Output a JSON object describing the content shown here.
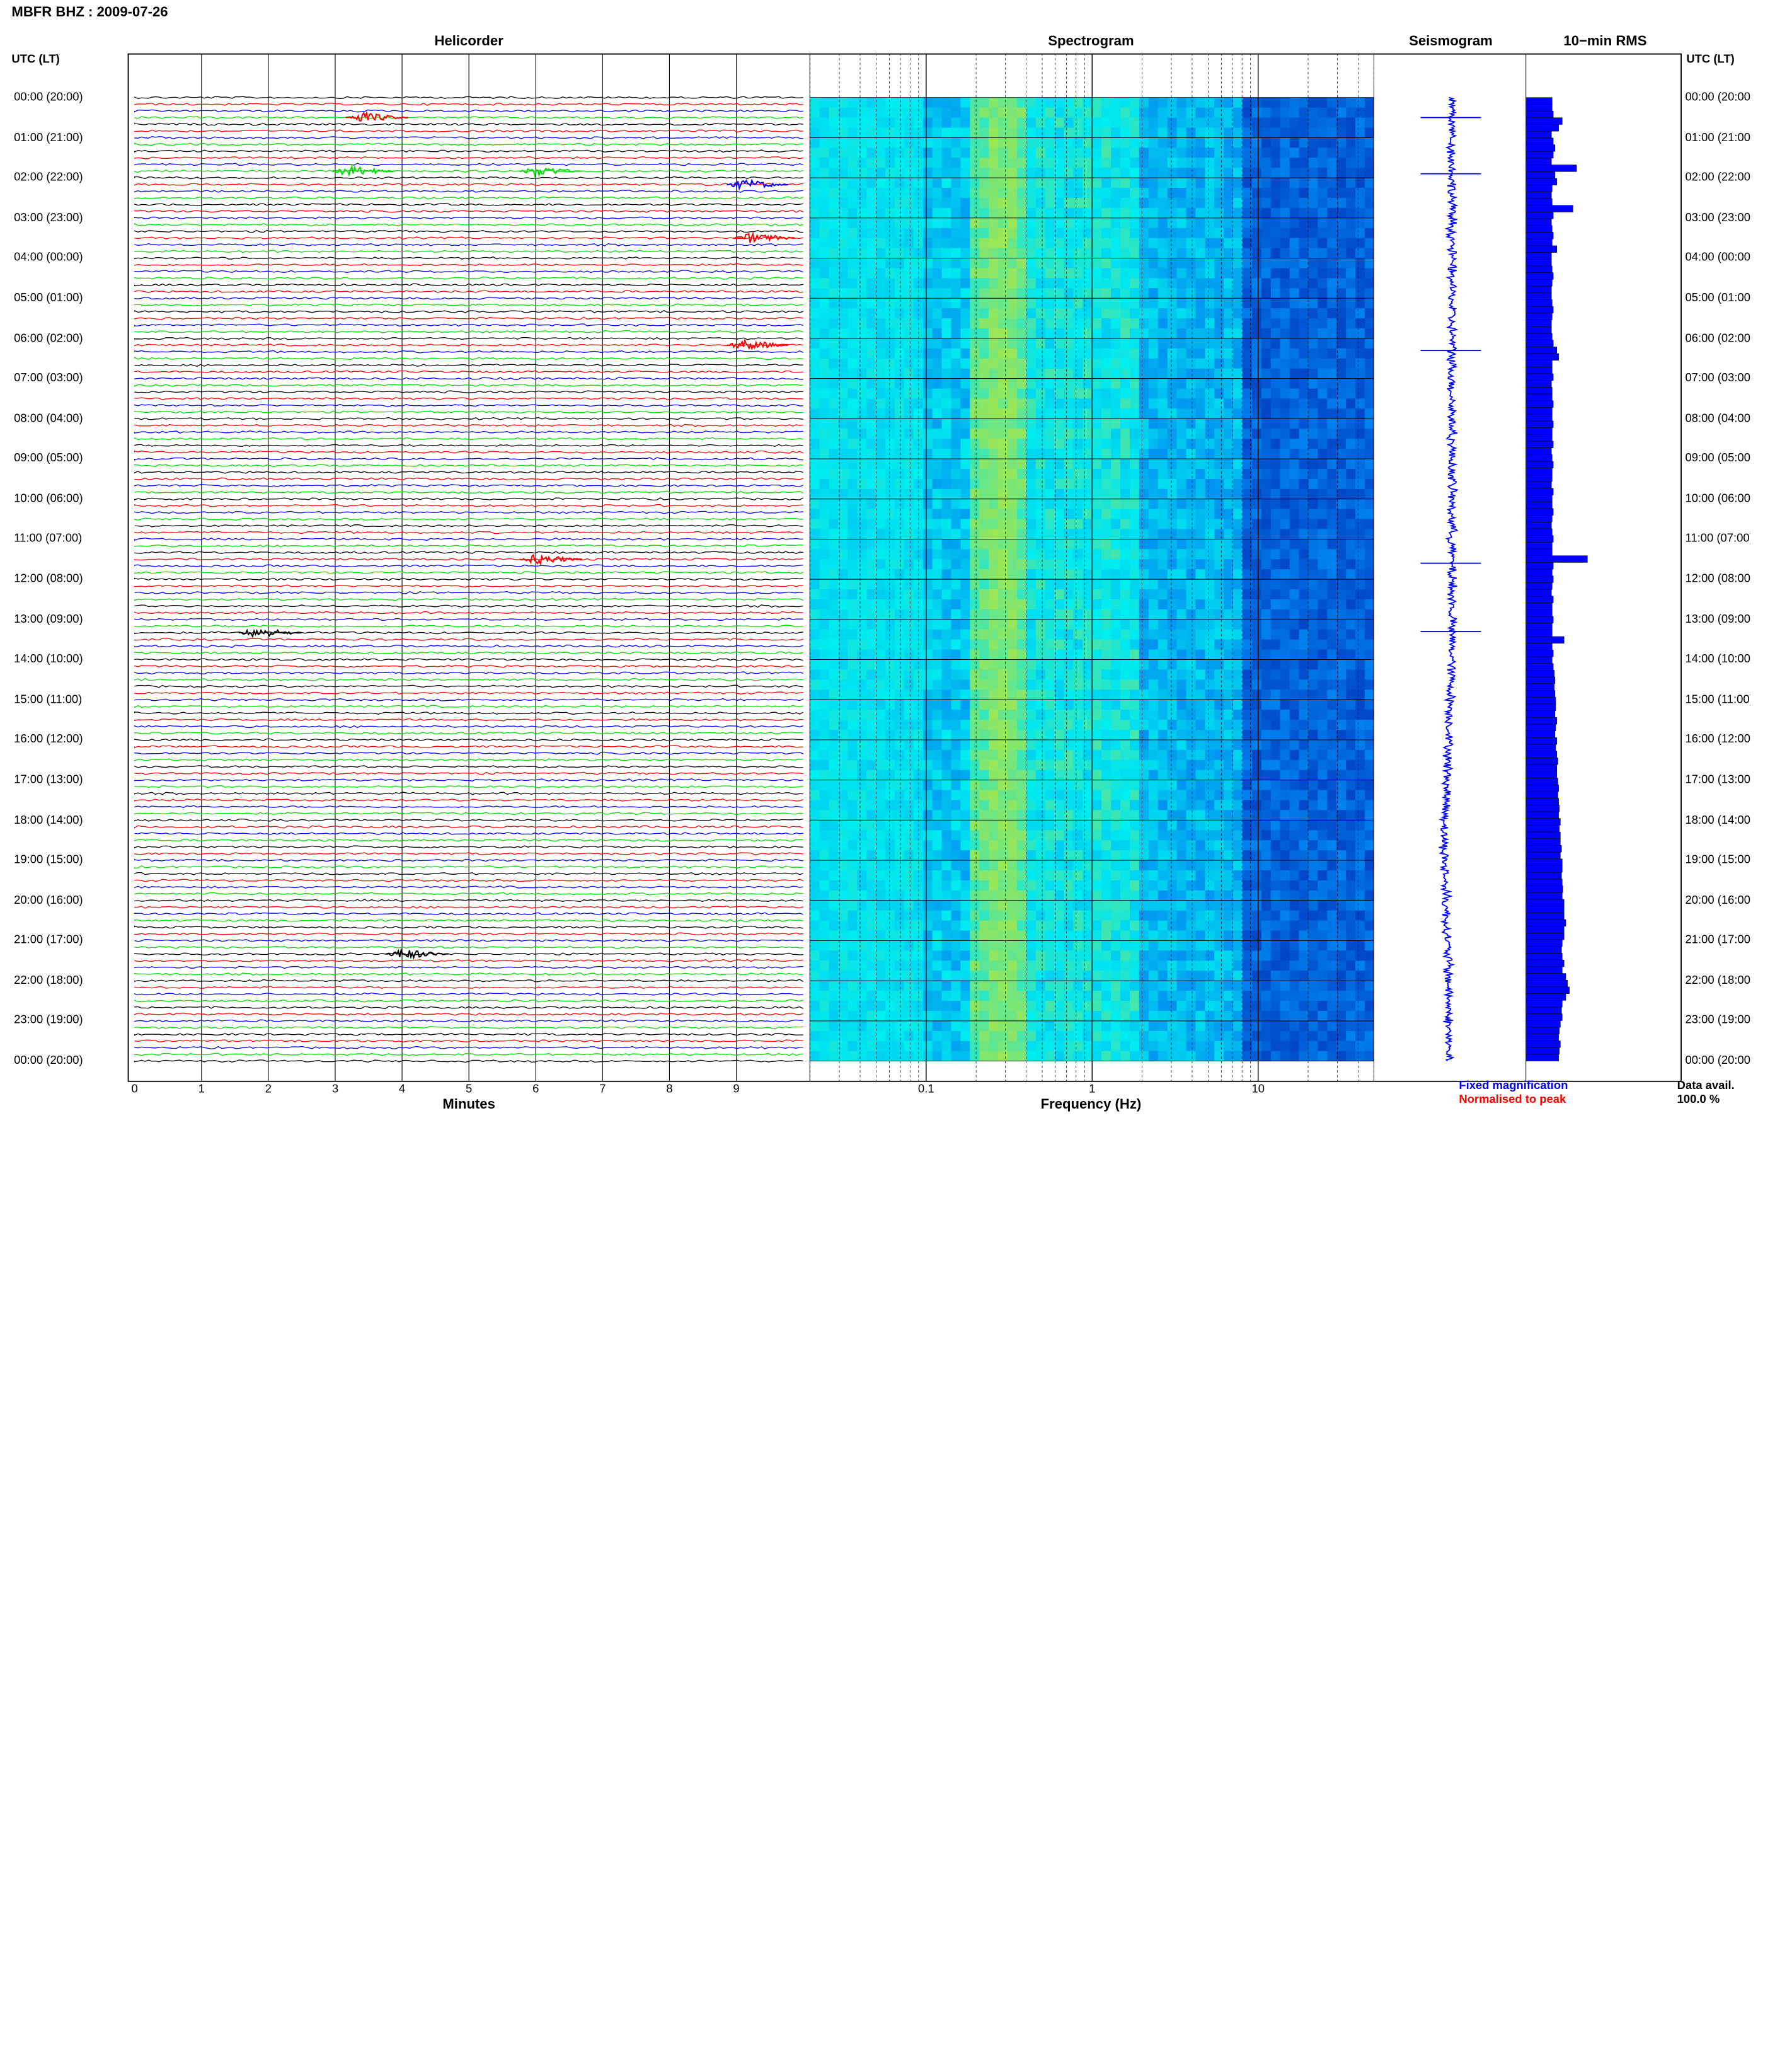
{
  "header": {
    "title": "MBFR BHZ : 2009-07-26"
  },
  "panels": {
    "helicorder": "Helicorder",
    "spectrogram": "Spectrogram",
    "seismogram": "Seismogram",
    "rms": "10−min RMS"
  },
  "axis": {
    "utc_label_left": "UTC (LT)",
    "utc_label_right": "UTC (LT)",
    "minutes_label": "Minutes",
    "frequency_label": "Frequency (Hz)"
  },
  "legend": {
    "fixed": "Fixed magnification",
    "normalised": "Normalised to peak"
  },
  "availability": {
    "label": "Data avail.",
    "value": "100.0 %"
  },
  "colors": {
    "trace_cycle": [
      "#000000",
      "#ff0000",
      "#0000ff",
      "#00dd00"
    ],
    "seismogram": "#0000ff",
    "rms": "#0000ff"
  },
  "chart_data": [
    {
      "type": "line",
      "name": "helicorder",
      "title": "Helicorder",
      "xlabel": "Minutes",
      "x_ticks": [
        0,
        1,
        2,
        3,
        4,
        5,
        6,
        7,
        8,
        9
      ],
      "x_tick_labels": [
        "0",
        "1",
        "2",
        "3",
        "4",
        "5",
        "6",
        "7",
        "8",
        "9"
      ],
      "xlim": [
        0,
        10
      ],
      "time_labels_utc": [
        "00:00 (20:00)",
        "01:00 (21:00)",
        "02:00 (22:00)",
        "03:00 (23:00)",
        "04:00 (00:00)",
        "05:00 (01:00)",
        "06:00 (02:00)",
        "07:00 (03:00)",
        "08:00 (04:00)",
        "09:00 (05:00)",
        "10:00 (06:00)",
        "11:00 (07:00)",
        "12:00 (08:00)",
        "13:00 (09:00)",
        "14:00 (10:00)",
        "15:00 (11:00)",
        "16:00 (12:00)",
        "17:00 (13:00)",
        "18:00 (14:00)",
        "19:00 (15:00)",
        "20:00 (16:00)",
        "21:00 (17:00)",
        "22:00 (18:00)",
        "23:00 (19:00)",
        "00:00 (20:00)"
      ],
      "lines_per_hour": 6,
      "events": [
        {
          "hour": 0.5,
          "minute": 3.4,
          "color": "red"
        },
        {
          "hour": 1.83,
          "minute": 3.2,
          "color": "green"
        },
        {
          "hour": 1.83,
          "minute": 6.0,
          "color": "green"
        },
        {
          "hour": 2.17,
          "minute": 9.1,
          "color": "blue"
        },
        {
          "hour": 3.5,
          "minute": 9.2,
          "color": "red"
        },
        {
          "hour": 6.17,
          "minute": 9.1,
          "color": "red"
        },
        {
          "hour": 11.5,
          "minute": 6.0,
          "color": "red"
        },
        {
          "hour": 13.33,
          "minute": 1.8,
          "color": "black"
        },
        {
          "hour": 21.33,
          "minute": 4.0,
          "color": "black"
        }
      ]
    },
    {
      "type": "heatmap",
      "name": "spectrogram",
      "title": "Spectrogram",
      "xlabel": "Frequency (Hz)",
      "xscale": "log",
      "xlim": [
        0.02,
        50
      ],
      "x_tick_labels": [
        "0.1",
        "1",
        "10"
      ],
      "x_ticks": [
        0.1,
        1,
        10
      ]
    },
    {
      "type": "line",
      "name": "seismogram",
      "title": "Seismogram",
      "legend": [
        "Fixed magnification",
        "Normalised to peak"
      ],
      "spikes_hours": [
        0.5,
        1.9,
        6.3,
        11.6,
        13.3
      ]
    },
    {
      "type": "bar",
      "name": "rms",
      "title": "10−min RMS",
      "orientation": "horizontal",
      "bins_per_hour": 6,
      "values": [
        0.72,
        0.72,
        0.75,
        1.0,
        0.9,
        0.7,
        0.75,
        0.8,
        0.75,
        0.7,
        1.4,
        0.8,
        0.85,
        0.72,
        0.7,
        0.72,
        1.3,
        0.75,
        0.7,
        0.72,
        0.75,
        0.72,
        0.85,
        0.7,
        0.7,
        0.72,
        0.75,
        0.72,
        0.7,
        0.7,
        0.72,
        0.75,
        0.72,
        0.7,
        0.7,
        0.72,
        0.75,
        0.85,
        0.9,
        0.72,
        0.72,
        0.75,
        0.7,
        0.72,
        0.72,
        0.75,
        0.72,
        0.72,
        0.75,
        0.72,
        0.72,
        0.75,
        0.7,
        0.72,
        0.75,
        0.72,
        0.72,
        0.7,
        0.75,
        0.72,
        0.72,
        0.75,
        0.72,
        0.7,
        0.72,
        0.75,
        0.72,
        0.72,
        1.7,
        0.75,
        0.72,
        0.75,
        0.72,
        0.7,
        0.75,
        0.72,
        0.72,
        0.75,
        0.72,
        0.72,
        1.05,
        0.72,
        0.75,
        0.72,
        0.75,
        0.78,
        0.8,
        0.78,
        0.8,
        0.82,
        0.82,
        0.8,
        0.85,
        0.82,
        0.8,
        0.85,
        0.82,
        0.85,
        0.88,
        0.85,
        0.85,
        0.88,
        0.9,
        0.88,
        0.9,
        0.92,
        0.9,
        0.95,
        0.92,
        0.95,
        0.95,
        0.98,
        0.95,
        1.0,
        1.0,
        0.98,
        1.0,
        1.02,
        1.0,
        1.05,
        1.05,
        1.05,
        1.1,
        1.05,
        1.05,
        1.0,
        0.98,
        1.0,
        1.05,
        1.0,
        1.1,
        1.15,
        1.2,
        1.1,
        1.0,
        0.98,
        1.0,
        0.95,
        0.92,
        0.9,
        0.95,
        0.92,
        0.9
      ]
    }
  ]
}
